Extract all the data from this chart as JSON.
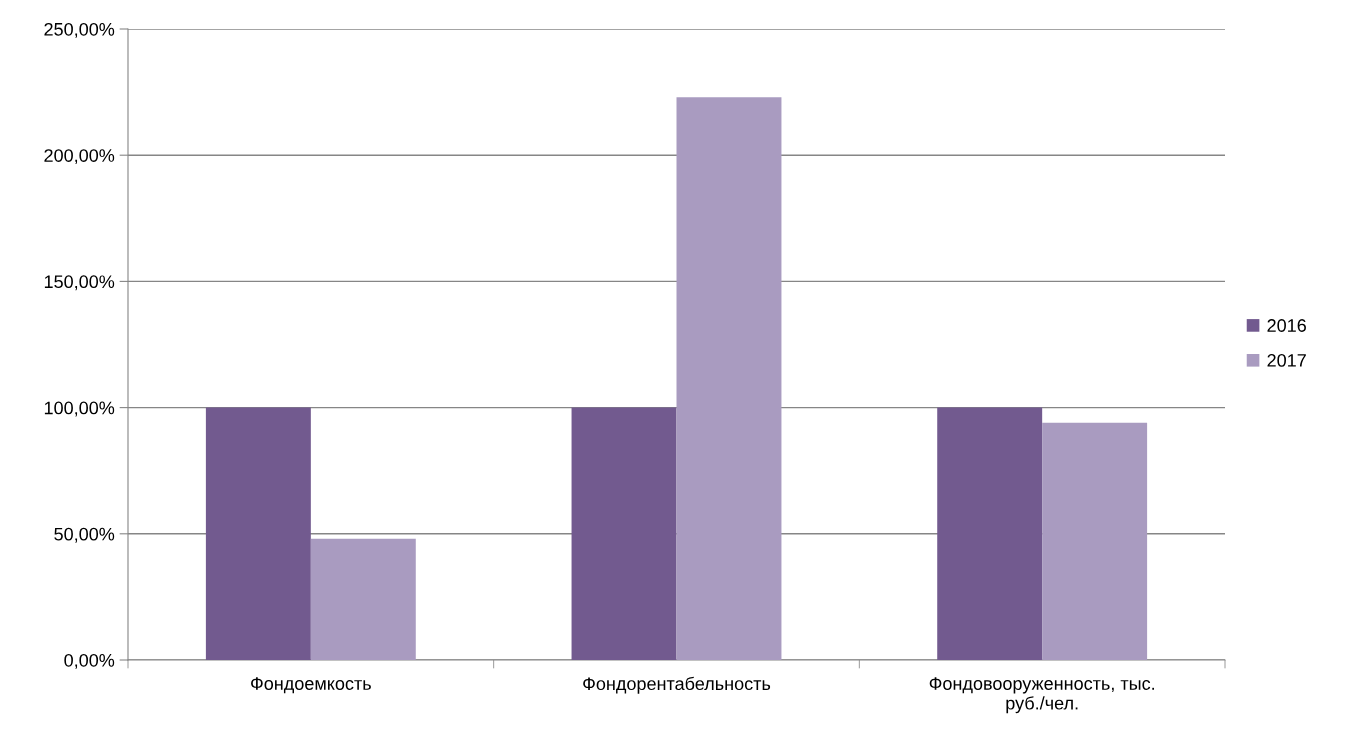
{
  "chart_data": {
    "type": "bar",
    "categories": [
      "Фондоемкость",
      "Фондорентабельность",
      "Фондовооруженность, тыс.\nруб./чел."
    ],
    "series": [
      {
        "name": "2016",
        "color": "#725a8f",
        "values": [
          100,
          100,
          100
        ]
      },
      {
        "name": "2017",
        "color": "#a99bc0",
        "values": [
          48,
          223,
          94
        ]
      }
    ],
    "ylim": [
      0,
      250
    ],
    "yticks": [
      {
        "value": 0,
        "label": "0,00%"
      },
      {
        "value": 50,
        "label": "50,00%"
      },
      {
        "value": 100,
        "label": "100,00%"
      },
      {
        "value": 150,
        "label": "150,00%"
      },
      {
        "value": 200,
        "label": "200,00%"
      },
      {
        "value": 250,
        "label": "250,00%"
      }
    ],
    "grid": "y",
    "legend": "right"
  }
}
